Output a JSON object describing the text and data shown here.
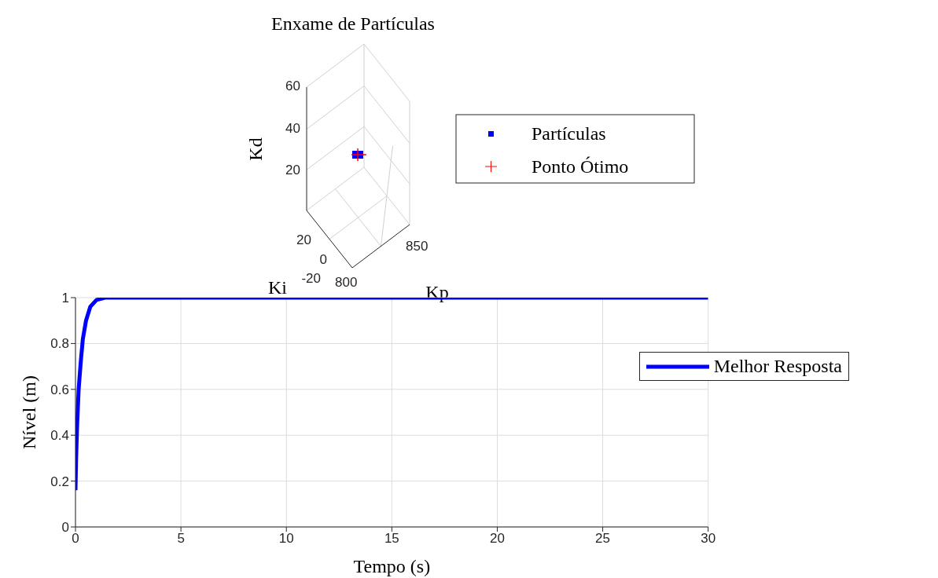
{
  "chart_data": [
    {
      "type": "other",
      "title": "Enxame de Partículas",
      "annotations": [
        "Kd",
        "Ki",
        "Kp",
        "60",
        "40",
        "20",
        "20",
        "0",
        "-20",
        "800",
        "850"
      ],
      "legend": "right",
      "series": [
        {
          "name": "Partículas",
          "color": "#0000ff"
        },
        {
          "name": "Ponto Ótimo",
          "color": "#ff0000"
        }
      ]
    },
    {
      "type": "line",
      "xlabel": "Tempo (s)",
      "ylabel": "Nível (m)",
      "xlim": [
        0,
        30
      ],
      "ylim": [
        0,
        1
      ],
      "xticks": [
        0,
        5,
        10,
        15,
        20,
        25,
        30
      ],
      "yticks": [
        0,
        0.2,
        0.4,
        0.6,
        0.8,
        1
      ],
      "grid": true,
      "legend": "right",
      "marker": "none",
      "line_style": "solid",
      "series": [
        {
          "name": "Melhor Resposta",
          "color": "#0000ff",
          "x": [
            0,
            0.03,
            0.08,
            0.15,
            0.25,
            0.35,
            0.5,
            0.7,
            1.0,
            1.4,
            30
          ],
          "values": [
            0.16,
            0.3,
            0.45,
            0.6,
            0.72,
            0.82,
            0.9,
            0.96,
            0.99,
            1,
            1
          ]
        }
      ]
    }
  ]
}
